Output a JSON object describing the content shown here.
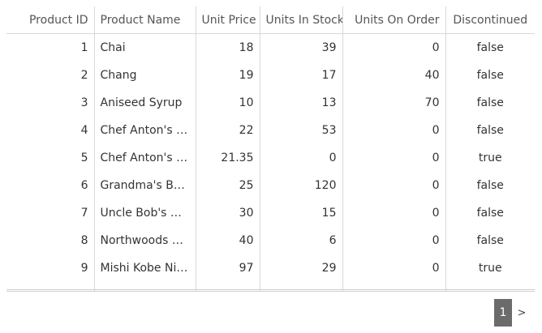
{
  "grid": {
    "columns": [
      {
        "key": "id",
        "label": "Product ID",
        "align": "r"
      },
      {
        "key": "name",
        "label": "Product Name",
        "align": "l"
      },
      {
        "key": "price",
        "label": "Unit Price",
        "align": "r"
      },
      {
        "key": "stock",
        "label": "Units In Stock",
        "align": "r"
      },
      {
        "key": "order",
        "label": "Units On Order",
        "align": "r"
      },
      {
        "key": "disc",
        "label": "Discontinued",
        "align": "c"
      }
    ],
    "rows": [
      {
        "id": "1",
        "name": "Chai",
        "price": "18",
        "stock": "39",
        "order": "0",
        "disc": "false"
      },
      {
        "id": "2",
        "name": "Chang",
        "price": "19",
        "stock": "17",
        "order": "40",
        "disc": "false"
      },
      {
        "id": "3",
        "name": "Aniseed Syrup",
        "price": "10",
        "stock": "13",
        "order": "70",
        "disc": "false"
      },
      {
        "id": "4",
        "name": "Chef Anton's Ca...",
        "price": "22",
        "stock": "53",
        "order": "0",
        "disc": "false"
      },
      {
        "id": "5",
        "name": "Chef Anton's G...",
        "price": "21.35",
        "stock": "0",
        "order": "0",
        "disc": "true"
      },
      {
        "id": "6",
        "name": "Grandma's Boys...",
        "price": "25",
        "stock": "120",
        "order": "0",
        "disc": "false"
      },
      {
        "id": "7",
        "name": "Uncle Bob's Org...",
        "price": "30",
        "stock": "15",
        "order": "0",
        "disc": "false"
      },
      {
        "id": "8",
        "name": "Northwoods Cr...",
        "price": "40",
        "stock": "6",
        "order": "0",
        "disc": "false"
      },
      {
        "id": "9",
        "name": "Mishi Kobe Niku",
        "price": "97",
        "stock": "29",
        "order": "0",
        "disc": "true"
      }
    ]
  },
  "pager": {
    "current_page": "1",
    "next_label": ">"
  }
}
